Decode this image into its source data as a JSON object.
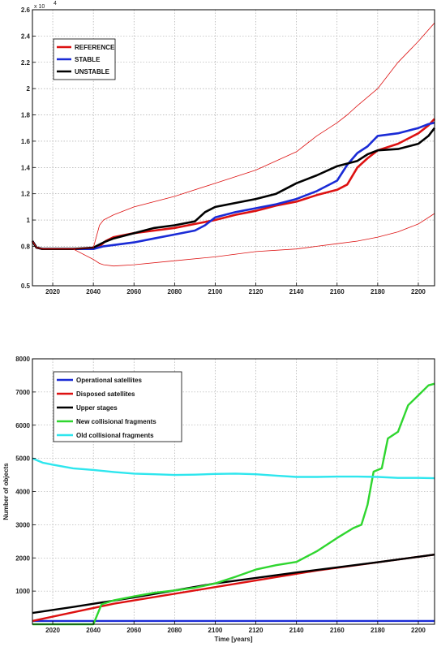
{
  "chart_data": [
    {
      "type": "line",
      "multiplier_label": "x 10",
      "multiplier_exponent": "4",
      "xlim": [
        2010,
        2208
      ],
      "ylim": [
        0.5,
        2.6
      ],
      "x_ticks": [
        "2020",
        "2040",
        "2060",
        "2080",
        "2100",
        "2120",
        "2140",
        "2160",
        "2180",
        "2200"
      ],
      "x_tick_values": [
        2020,
        2040,
        2060,
        2080,
        2100,
        2120,
        2140,
        2160,
        2180,
        2200
      ],
      "y_ticks": [
        "0.5",
        "0.8",
        "1",
        "1.2",
        "1.4",
        "1.6",
        "1.8",
        "2",
        "2.2",
        "2.4",
        "2.6"
      ],
      "y_tick_values": [
        0.5,
        0.8,
        1,
        1.2,
        1.4,
        1.6,
        1.8,
        2,
        2.2,
        2.4,
        2.6
      ],
      "grid": true,
      "legend_position": "top-left",
      "series": [
        {
          "name": "REFERENCE",
          "color": "#dd1111",
          "style": "thick",
          "x": [
            2010,
            2012,
            2015,
            2020,
            2030,
            2040,
            2043,
            2046,
            2050,
            2060,
            2070,
            2080,
            2090,
            2100,
            2110,
            2120,
            2130,
            2140,
            2150,
            2160,
            2165,
            2170,
            2175,
            2180,
            2190,
            2200,
            2205,
            2208
          ],
          "y": [
            0.84,
            0.79,
            0.78,
            0.78,
            0.78,
            0.78,
            0.8,
            0.84,
            0.87,
            0.9,
            0.92,
            0.94,
            0.97,
            1.0,
            1.04,
            1.07,
            1.11,
            1.14,
            1.19,
            1.23,
            1.27,
            1.4,
            1.47,
            1.53,
            1.58,
            1.66,
            1.72,
            1.77
          ]
        },
        {
          "name": "STABLE",
          "color": "#1a2bd6",
          "style": "thick",
          "x": [
            2010,
            2012,
            2015,
            2020,
            2030,
            2040,
            2045,
            2050,
            2060,
            2070,
            2080,
            2090,
            2095,
            2100,
            2110,
            2120,
            2130,
            2140,
            2150,
            2160,
            2165,
            2170,
            2175,
            2180,
            2190,
            2200,
            2205,
            2208
          ],
          "y": [
            0.84,
            0.79,
            0.78,
            0.78,
            0.78,
            0.78,
            0.8,
            0.81,
            0.83,
            0.86,
            0.89,
            0.92,
            0.96,
            1.02,
            1.06,
            1.09,
            1.12,
            1.16,
            1.22,
            1.3,
            1.42,
            1.51,
            1.56,
            1.64,
            1.66,
            1.7,
            1.73,
            1.74
          ]
        },
        {
          "name": "UNSTABLE",
          "color": "#000000",
          "style": "thick",
          "x": [
            2010,
            2012,
            2015,
            2020,
            2030,
            2040,
            2045,
            2050,
            2060,
            2070,
            2080,
            2090,
            2095,
            2100,
            2110,
            2120,
            2130,
            2140,
            2150,
            2160,
            2170,
            2175,
            2180,
            2190,
            2200,
            2205,
            2208
          ],
          "y": [
            0.84,
            0.79,
            0.78,
            0.78,
            0.78,
            0.79,
            0.83,
            0.86,
            0.9,
            0.94,
            0.96,
            0.99,
            1.06,
            1.1,
            1.13,
            1.16,
            1.2,
            1.28,
            1.34,
            1.41,
            1.45,
            1.5,
            1.53,
            1.54,
            1.58,
            1.64,
            1.7
          ]
        },
        {
          "color": "#dd1111",
          "style": "thin",
          "x": [
            2010,
            2012,
            2015,
            2020,
            2030,
            2040,
            2043,
            2045,
            2050,
            2060,
            2080,
            2100,
            2120,
            2140,
            2150,
            2160,
            2165,
            2170,
            2180,
            2190,
            2200,
            2208
          ],
          "y": [
            0.84,
            0.79,
            0.78,
            0.78,
            0.78,
            0.79,
            0.96,
            1.0,
            1.04,
            1.1,
            1.18,
            1.28,
            1.38,
            1.52,
            1.64,
            1.74,
            1.8,
            1.87,
            2.0,
            2.2,
            2.36,
            2.5
          ]
        },
        {
          "color": "#dd1111",
          "style": "thin",
          "x": [
            2010,
            2012,
            2015,
            2020,
            2030,
            2040,
            2043,
            2045,
            2050,
            2060,
            2080,
            2100,
            2120,
            2140,
            2150,
            2160,
            2170,
            2180,
            2190,
            2200,
            2208
          ],
          "y": [
            0.84,
            0.79,
            0.78,
            0.78,
            0.78,
            0.7,
            0.67,
            0.66,
            0.65,
            0.66,
            0.69,
            0.72,
            0.76,
            0.78,
            0.8,
            0.82,
            0.84,
            0.87,
            0.91,
            0.97,
            1.05
          ]
        }
      ]
    },
    {
      "type": "line",
      "xlabel": "Time [years]",
      "ylabel": "Number of objects",
      "xlim": [
        2010,
        2208
      ],
      "ylim": [
        0,
        8000
      ],
      "x_ticks": [
        "2020",
        "2040",
        "2060",
        "2080",
        "2100",
        "2120",
        "2140",
        "2160",
        "2180",
        "2200"
      ],
      "x_tick_values": [
        2020,
        2040,
        2060,
        2080,
        2100,
        2120,
        2140,
        2160,
        2180,
        2200
      ],
      "y_ticks": [
        "1000",
        "2000",
        "3000",
        "4000",
        "5000",
        "6000",
        "7000",
        "8000"
      ],
      "y_tick_values": [
        1000,
        2000,
        3000,
        4000,
        5000,
        6000,
        7000,
        8000
      ],
      "grid": true,
      "legend_position": "top-left",
      "series": [
        {
          "name": "Operational satellites",
          "color": "#1a2bd6",
          "x": [
            2010,
            2208
          ],
          "y": [
            100,
            100
          ]
        },
        {
          "name": "Disposed satellites",
          "color": "#dd1111",
          "x": [
            2010,
            2050,
            2100,
            2150,
            2208
          ],
          "y": [
            100,
            620,
            1120,
            1620,
            2100
          ]
        },
        {
          "name": "Upper stages",
          "color": "#000000",
          "x": [
            2010,
            2030,
            2060,
            2100,
            2140,
            2180,
            2208
          ],
          "y": [
            340,
            520,
            810,
            1230,
            1560,
            1870,
            2100
          ]
        },
        {
          "name": "New collisional fragments",
          "color": "#2fd62f",
          "x": [
            2010,
            2040,
            2044,
            2050,
            2060,
            2070,
            2080,
            2090,
            2100,
            2110,
            2120,
            2130,
            2140,
            2150,
            2160,
            2168,
            2172,
            2175,
            2178,
            2182,
            2185,
            2190,
            2195,
            2200,
            2205,
            2208
          ],
          "y": [
            0,
            0,
            600,
            720,
            840,
            950,
            1020,
            1100,
            1230,
            1430,
            1650,
            1780,
            1880,
            2200,
            2600,
            2900,
            3000,
            3600,
            4600,
            4700,
            5600,
            5800,
            6600,
            6900,
            7200,
            7250
          ]
        },
        {
          "name": "Old collisional fragments",
          "color": "#2ee6ee",
          "x": [
            2010,
            2015,
            2020,
            2030,
            2040,
            2050,
            2060,
            2070,
            2080,
            2090,
            2100,
            2110,
            2120,
            2130,
            2140,
            2150,
            2160,
            2170,
            2180,
            2190,
            2200,
            2208
          ],
          "y": [
            5000,
            4870,
            4810,
            4700,
            4650,
            4590,
            4540,
            4520,
            4500,
            4510,
            4530,
            4540,
            4520,
            4480,
            4440,
            4440,
            4450,
            4450,
            4440,
            4410,
            4410,
            4400
          ]
        }
      ]
    }
  ]
}
